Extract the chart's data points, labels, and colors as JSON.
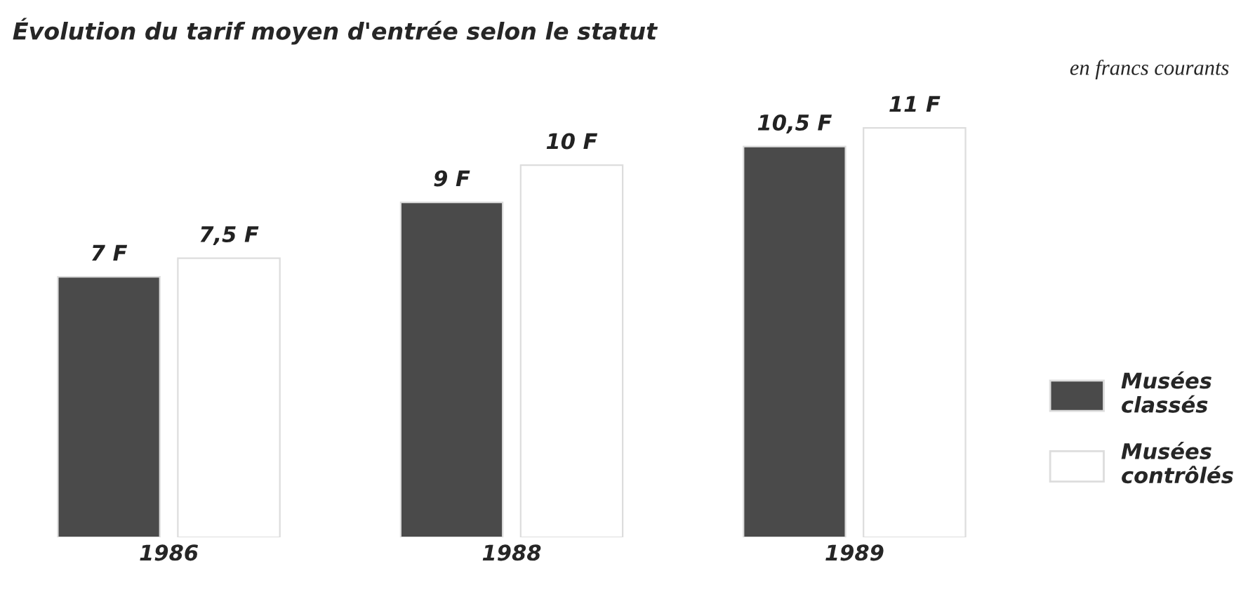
{
  "chart_data": {
    "type": "bar",
    "title": "Évolution du tarif moyen d'entrée selon le statut",
    "annotations": [
      "en francs courants"
    ],
    "categories": [
      "1986",
      "1988",
      "1989"
    ],
    "series": [
      {
        "name": "Musées classés",
        "color": "#4a4a4a",
        "values": [
          7,
          9,
          10.5
        ],
        "value_labels": [
          "7 F",
          "9 F",
          "10,5 F"
        ]
      },
      {
        "name": "Musées contrôlés",
        "color": "#ffffff",
        "values": [
          7.5,
          10,
          11
        ],
        "value_labels": [
          "7,5 F",
          "10 F",
          "11 F"
        ]
      }
    ],
    "legend": "right",
    "grid": false
  }
}
